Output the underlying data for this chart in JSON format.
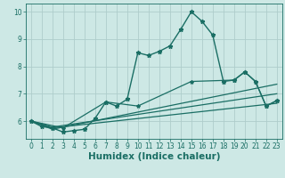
{
  "title": "",
  "xlabel": "Humidex (Indice chaleur)",
  "ylabel": "",
  "xlim": [
    -0.5,
    23.5
  ],
  "ylim": [
    5.35,
    10.3
  ],
  "background_color": "#cde8e5",
  "grid_color": "#aecdcb",
  "line_color": "#1a6e64",
  "lines": [
    {
      "x": [
        0,
        1,
        2,
        3,
        4,
        5,
        6,
        7,
        8,
        9,
        10,
        11,
        12,
        13,
        14,
        15,
        16,
        17,
        18,
        19,
        20,
        21,
        22,
        23
      ],
      "y": [
        6.0,
        5.8,
        5.75,
        5.6,
        5.65,
        5.7,
        6.1,
        6.7,
        6.55,
        6.8,
        8.5,
        8.4,
        8.55,
        8.75,
        9.35,
        10.0,
        9.65,
        9.15,
        7.45,
        7.5,
        7.8,
        7.45,
        6.55,
        6.75
      ],
      "marker": true,
      "linewidth": 1.0,
      "markersize": 3.5
    },
    {
      "x": [
        0,
        3,
        7,
        10,
        15,
        19,
        20,
        21,
        22,
        23
      ],
      "y": [
        6.0,
        5.75,
        6.7,
        6.55,
        7.45,
        7.5,
        7.8,
        7.45,
        6.55,
        6.75
      ],
      "marker": true,
      "linewidth": 0.9,
      "markersize": 3.0
    },
    {
      "x": [
        0,
        2,
        23
      ],
      "y": [
        6.0,
        5.75,
        6.65
      ],
      "marker": false,
      "linewidth": 0.9,
      "markersize": 0
    },
    {
      "x": [
        0,
        2,
        23
      ],
      "y": [
        6.0,
        5.7,
        7.35
      ],
      "marker": false,
      "linewidth": 0.9,
      "markersize": 0
    },
    {
      "x": [
        0,
        2,
        23
      ],
      "y": [
        6.0,
        5.78,
        7.0
      ],
      "marker": false,
      "linewidth": 0.9,
      "markersize": 0
    }
  ],
  "xticks": [
    0,
    1,
    2,
    3,
    4,
    5,
    6,
    7,
    8,
    9,
    10,
    11,
    12,
    13,
    14,
    15,
    16,
    17,
    18,
    19,
    20,
    21,
    22,
    23
  ],
  "yticks": [
    6,
    7,
    8,
    9,
    10
  ],
  "tick_fontsize": 5.5,
  "label_fontsize": 7.5
}
